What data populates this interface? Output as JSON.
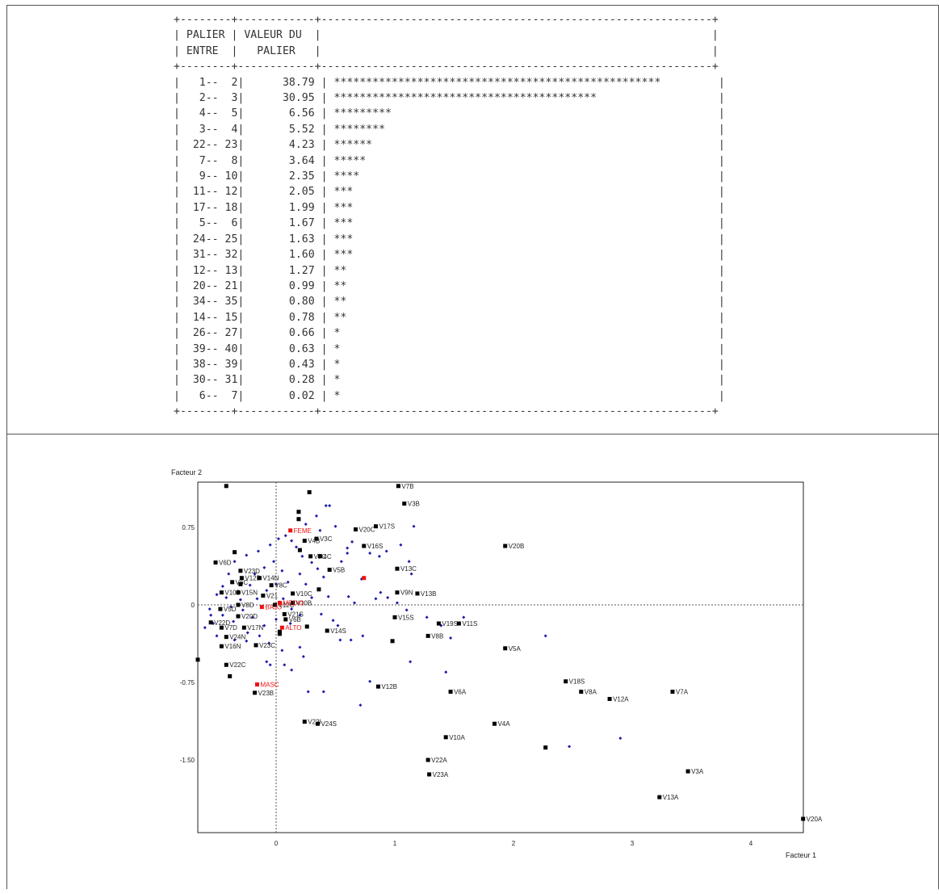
{
  "palier_table": {
    "header_row1": [
      "PALIER",
      "VALEUR DU"
    ],
    "header_row2": [
      "ENTRE",
      "PALIER"
    ],
    "rows": [
      {
        "a": "1",
        "b": "2",
        "value": "38.79",
        "stars": 51
      },
      {
        "a": "2",
        "b": "3",
        "value": "30.95",
        "stars": 41
      },
      {
        "a": "4",
        "b": "5",
        "value": "6.56",
        "stars": 9
      },
      {
        "a": "3",
        "b": "4",
        "value": "5.52",
        "stars": 8
      },
      {
        "a": "22",
        "b": "23",
        "value": "4.23",
        "stars": 6
      },
      {
        "a": "7",
        "b": "8",
        "value": "3.64",
        "stars": 5
      },
      {
        "a": "9",
        "b": "10",
        "value": "2.35",
        "stars": 4
      },
      {
        "a": "11",
        "b": "12",
        "value": "2.05",
        "stars": 3
      },
      {
        "a": "17",
        "b": "18",
        "value": "1.99",
        "stars": 3
      },
      {
        "a": "5",
        "b": "6",
        "value": "1.67",
        "stars": 3
      },
      {
        "a": "24",
        "b": "25",
        "value": "1.63",
        "stars": 3
      },
      {
        "a": "31",
        "b": "32",
        "value": "1.60",
        "stars": 3
      },
      {
        "a": "12",
        "b": "13",
        "value": "1.27",
        "stars": 2
      },
      {
        "a": "20",
        "b": "21",
        "value": "0.99",
        "stars": 2
      },
      {
        "a": "34",
        "b": "35",
        "value": "0.80",
        "stars": 2
      },
      {
        "a": "14",
        "b": "15",
        "value": "0.78",
        "stars": 2
      },
      {
        "a": "26",
        "b": "27",
        "value": "0.66",
        "stars": 1
      },
      {
        "a": "39",
        "b": "40",
        "value": "0.63",
        "stars": 1
      },
      {
        "a": "38",
        "b": "39",
        "value": "0.43",
        "stars": 1
      },
      {
        "a": "30",
        "b": "31",
        "value": "0.28",
        "stars": 1
      },
      {
        "a": "6",
        "b": "7",
        "value": "0.02",
        "stars": 1
      }
    ]
  },
  "chart_data": {
    "type": "scatter",
    "xlabel": "Facteur 1",
    "ylabel": "Facteur 2",
    "xlim": [
      -0.66,
      4.44
    ],
    "ylim": [
      -1.82,
      1.2
    ],
    "xticks": [
      0,
      1,
      2,
      3,
      4
    ],
    "yticks": [
      -1.5,
      -0.75,
      0,
      0.75
    ],
    "ytick_labels": [
      "-1.50",
      "-0.75",
      "0",
      "0.75"
    ],
    "colors": {
      "modality": "#000000",
      "supplementary": "#ee1111",
      "individual": "#1a1aaa",
      "axis_zero": "#555555"
    },
    "modalities": [
      {
        "label": "V7B",
        "x": 1.03,
        "y": 1.15
      },
      {
        "label": "V3B",
        "x": 1.08,
        "y": 0.98
      },
      {
        "label": "V17S",
        "x": 0.84,
        "y": 0.76
      },
      {
        "label": "V20C",
        "x": 0.67,
        "y": 0.73
      },
      {
        "label": "V16S",
        "x": 0.74,
        "y": 0.57
      },
      {
        "label": "V20B",
        "x": 1.93,
        "y": 0.57
      },
      {
        "label": "V3C",
        "x": 0.34,
        "y": 0.64
      },
      {
        "label": "V4B",
        "x": 0.24,
        "y": 0.62
      },
      {
        "label": "V7C",
        "x": 0.29,
        "y": 0.47
      },
      {
        "label": "4C",
        "x": 0.37,
        "y": 0.47
      },
      {
        "label": "V5B",
        "x": 0.45,
        "y": 0.34
      },
      {
        "label": "V13C",
        "x": 1.02,
        "y": 0.35
      },
      {
        "label": "V9N",
        "x": 1.02,
        "y": 0.12
      },
      {
        "label": "V13B",
        "x": 1.19,
        "y": 0.11
      },
      {
        "label": "V6D",
        "x": -0.51,
        "y": 0.41
      },
      {
        "label": "V23D",
        "x": -0.3,
        "y": 0.33
      },
      {
        "label": "V12D",
        "x": -0.29,
        "y": 0.26
      },
      {
        "label": "V6C",
        "x": -0.37,
        "y": 0.22
      },
      {
        "label": "V14N",
        "x": -0.14,
        "y": 0.26
      },
      {
        "label": "V8C",
        "x": -0.04,
        "y": 0.19
      },
      {
        "label": "V10D",
        "x": -0.46,
        "y": 0.12
      },
      {
        "label": "V15N",
        "x": -0.32,
        "y": 0.12
      },
      {
        "label": "V21",
        "x": -0.11,
        "y": 0.09
      },
      {
        "label": "V10C",
        "x": 0.14,
        "y": 0.11
      },
      {
        "label": "V8D",
        "x": -0.32,
        "y": 0.0
      },
      {
        "label": "V12C",
        "x": -0.01,
        "y": 0.0
      },
      {
        "label": "V10B",
        "x": 0.14,
        "y": 0.02
      },
      {
        "label": "V5D",
        "x": -0.47,
        "y": -0.04
      },
      {
        "label": "V20D",
        "x": -0.32,
        "y": -0.11
      },
      {
        "label": "V21S",
        "x": 0.07,
        "y": -0.09
      },
      {
        "label": "V6B",
        "x": 0.08,
        "y": -0.14
      },
      {
        "label": "V22D",
        "x": -0.55,
        "y": -0.17
      },
      {
        "label": "V7D",
        "x": -0.46,
        "y": -0.22
      },
      {
        "label": "V17N",
        "x": -0.27,
        "y": -0.22
      },
      {
        "label": "V14S",
        "x": 0.43,
        "y": -0.25
      },
      {
        "label": "V15S",
        "x": 1.0,
        "y": -0.12
      },
      {
        "label": "V19S",
        "x": 1.37,
        "y": -0.18
      },
      {
        "label": "V11S",
        "x": 1.54,
        "y": -0.18
      },
      {
        "label": "V8B",
        "x": 1.28,
        "y": -0.3
      },
      {
        "label": "V5A",
        "x": 1.93,
        "y": -0.42
      },
      {
        "label": "V24N",
        "x": -0.42,
        "y": -0.31
      },
      {
        "label": "V16N",
        "x": -0.46,
        "y": -0.4
      },
      {
        "label": "V23C",
        "x": -0.17,
        "y": -0.39
      },
      {
        "label": "V22C",
        "x": -0.42,
        "y": -0.58
      },
      {
        "label": "V23B",
        "x": -0.18,
        "y": -0.85
      },
      {
        "label": "V12B",
        "x": 0.86,
        "y": -0.79
      },
      {
        "label": "V6A",
        "x": 1.47,
        "y": -0.84
      },
      {
        "label": "V18S",
        "x": 2.44,
        "y": -0.74
      },
      {
        "label": "V8A",
        "x": 2.57,
        "y": -0.84
      },
      {
        "label": "V12A",
        "x": 2.81,
        "y": -0.91
      },
      {
        "label": "V7A",
        "x": 3.34,
        "y": -0.84
      },
      {
        "label": "V22I",
        "x": 0.24,
        "y": -1.13
      },
      {
        "label": "V24S",
        "x": 0.35,
        "y": -1.15
      },
      {
        "label": "V4A",
        "x": 1.84,
        "y": -1.15
      },
      {
        "label": "V10A",
        "x": 1.43,
        "y": -1.28
      },
      {
        "label": "V22A",
        "x": 1.28,
        "y": -1.5
      },
      {
        "label": "V23A",
        "x": 1.29,
        "y": -1.64
      },
      {
        "label": "V3A",
        "x": 3.47,
        "y": -1.61
      },
      {
        "label": "V13A",
        "x": 3.23,
        "y": -1.86
      },
      {
        "label": "V20A",
        "x": 4.44,
        "y": -2.07
      }
    ],
    "unlabeled_modalities": [
      {
        "x": -0.42,
        "y": 1.15
      },
      {
        "x": 0.28,
        "y": 1.09
      },
      {
        "x": 0.19,
        "y": 0.9
      },
      {
        "x": 0.19,
        "y": 0.83
      },
      {
        "x": -0.35,
        "y": 0.51
      },
      {
        "x": 0.2,
        "y": 0.53
      },
      {
        "x": -0.3,
        "y": 0.2
      },
      {
        "x": 0.36,
        "y": 0.15
      },
      {
        "x": 0.26,
        "y": -0.21
      },
      {
        "x": 0.03,
        "y": -0.26
      },
      {
        "x": 0.03,
        "y": -0.28
      },
      {
        "x": 0.98,
        "y": -0.35
      },
      {
        "x": -0.66,
        "y": -0.53
      },
      {
        "x": -0.39,
        "y": -0.69
      },
      {
        "x": 2.27,
        "y": -1.38
      }
    ],
    "supplementary": [
      {
        "label": "FEME",
        "x": 0.12,
        "y": 0.72
      },
      {
        "label": "MEDIO",
        "x": 0.03,
        "y": 0.02
      },
      {
        "label": "BAJO",
        "x": -0.12,
        "y": -0.02
      },
      {
        "label": "ALTO",
        "x": 0.05,
        "y": -0.22
      },
      {
        "label": "MASC",
        "x": -0.16,
        "y": -0.77
      },
      {
        "label": "",
        "x": 0.74,
        "y": 0.26
      }
    ],
    "individuals": [
      [
        0.45,
        0.96
      ],
      [
        0.42,
        0.96
      ],
      [
        0.34,
        0.86
      ],
      [
        0.25,
        0.78
      ],
      [
        0.37,
        0.72
      ],
      [
        0.5,
        0.76
      ],
      [
        0.6,
        0.5
      ],
      [
        0.79,
        0.5
      ],
      [
        0.87,
        0.47
      ],
      [
        1.05,
        0.58
      ],
      [
        1.16,
        0.76
      ],
      [
        1.12,
        0.42
      ],
      [
        1.14,
        0.3
      ],
      [
        0.93,
        0.52
      ],
      [
        0.64,
        0.61
      ],
      [
        0.6,
        0.55
      ],
      [
        0.55,
        0.42
      ],
      [
        0.72,
        0.25
      ],
      [
        0.84,
        0.06
      ],
      [
        0.88,
        0.12
      ],
      [
        0.61,
        0.08
      ],
      [
        0.66,
        0.02
      ],
      [
        0.94,
        0.07
      ],
      [
        1.02,
        0.02
      ],
      [
        1.1,
        -0.05
      ],
      [
        1.27,
        -0.12
      ],
      [
        1.39,
        -0.2
      ],
      [
        1.47,
        -0.32
      ],
      [
        1.58,
        -0.12
      ],
      [
        1.43,
        -0.65
      ],
      [
        1.13,
        -0.55
      ],
      [
        0.79,
        -0.74
      ],
      [
        0.71,
        -0.97
      ],
      [
        0.4,
        -0.84
      ],
      [
        0.27,
        -0.84
      ],
      [
        2.27,
        -0.3
      ],
      [
        2.47,
        -1.37
      ],
      [
        2.9,
        -1.29
      ],
      [
        0.52,
        -0.2
      ],
      [
        0.54,
        -0.34
      ],
      [
        0.63,
        -0.34
      ],
      [
        0.73,
        -0.3
      ],
      [
        0.48,
        -0.15
      ],
      [
        0.38,
        -0.09
      ],
      [
        0.2,
        -0.41
      ],
      [
        0.05,
        -0.44
      ],
      [
        0.07,
        -0.58
      ],
      [
        -0.05,
        -0.58
      ],
      [
        0.13,
        -0.63
      ],
      [
        0.23,
        -0.5
      ],
      [
        -0.08,
        -0.55
      ],
      [
        -0.25,
        -0.35
      ],
      [
        -0.35,
        -0.34
      ],
      [
        -0.5,
        -0.3
      ],
      [
        -0.55,
        -0.1
      ],
      [
        -0.6,
        -0.22
      ],
      [
        -0.56,
        -0.04
      ],
      [
        -0.5,
        0.1
      ],
      [
        -0.45,
        0.18
      ],
      [
        -0.4,
        0.3
      ],
      [
        -0.35,
        0.42
      ],
      [
        -0.25,
        0.48
      ],
      [
        -0.15,
        0.52
      ],
      [
        -0.05,
        0.58
      ],
      [
        0.02,
        0.64
      ],
      [
        0.08,
        0.67
      ],
      [
        0.13,
        0.62
      ],
      [
        0.17,
        0.56
      ],
      [
        0.22,
        0.47
      ],
      [
        0.3,
        0.41
      ],
      [
        0.35,
        0.35
      ],
      [
        0.4,
        0.27
      ],
      [
        0.2,
        0.3
      ],
      [
        0.1,
        0.22
      ],
      [
        0.05,
        0.33
      ],
      [
        -0.02,
        0.42
      ],
      [
        -0.1,
        0.36
      ],
      [
        -0.18,
        0.3
      ],
      [
        -0.22,
        0.19
      ],
      [
        -0.16,
        0.06
      ],
      [
        -0.08,
        0.14
      ],
      [
        0.0,
        0.2
      ],
      [
        0.06,
        0.06
      ],
      [
        0.13,
        -0.04
      ],
      [
        0.2,
        -0.1
      ],
      [
        0.12,
        -0.18
      ],
      [
        0.0,
        -0.14
      ],
      [
        -0.1,
        -0.2
      ],
      [
        -0.2,
        -0.12
      ],
      [
        -0.28,
        -0.05
      ],
      [
        -0.38,
        -0.02
      ],
      [
        -0.42,
        0.07
      ],
      [
        -0.3,
        0.05
      ],
      [
        -0.24,
        -0.27
      ],
      [
        -0.14,
        -0.3
      ],
      [
        -0.06,
        -0.37
      ],
      [
        -0.36,
        -0.16
      ],
      [
        -0.45,
        -0.1
      ],
      [
        -0.53,
        -0.18
      ],
      [
        0.3,
        0.07
      ],
      [
        0.25,
        0.2
      ],
      [
        0.44,
        0.08
      ]
    ]
  }
}
